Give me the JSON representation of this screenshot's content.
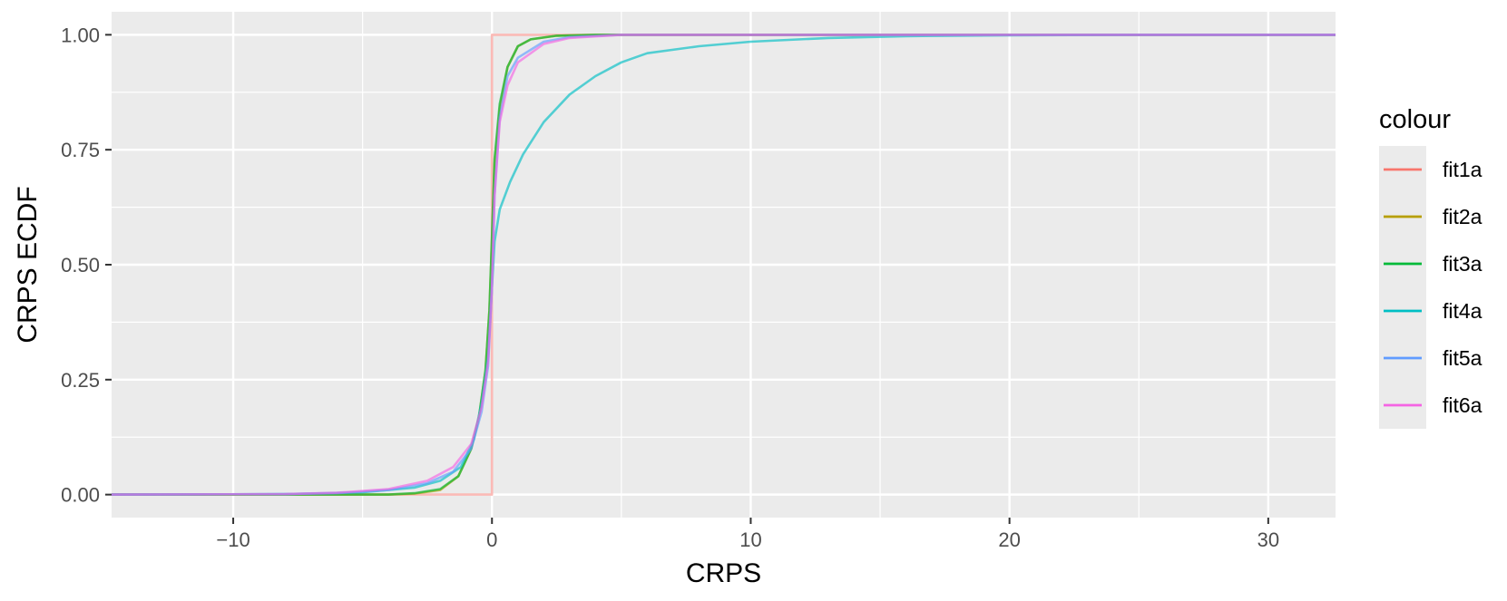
{
  "chart_data": {
    "type": "line",
    "title": "",
    "xlabel": "CRPS",
    "ylabel": "CRPS ECDF",
    "xlim": [
      -14.7,
      32.6
    ],
    "ylim": [
      -0.05,
      1.05
    ],
    "x_ticks": [
      -10,
      0,
      10,
      20,
      30
    ],
    "x_tick_labels": [
      "−10",
      "0",
      "10",
      "20",
      "30"
    ],
    "y_ticks": [
      0,
      0.25,
      0.5,
      0.75,
      1
    ],
    "y_tick_labels": [
      "0.00",
      "0.25",
      "0.50",
      "0.75",
      "1.00"
    ],
    "grid": true,
    "panel_background": "#ebebeb",
    "legend": {
      "title": "colour",
      "position": "right"
    },
    "series": [
      {
        "name": "fit1a",
        "color": "#F8766D",
        "points": [
          [
            -14.7,
            0
          ],
          [
            0,
            0
          ],
          [
            0,
            1
          ],
          [
            32.6,
            1
          ]
        ]
      },
      {
        "name": "fit2a",
        "color": "#B79F00",
        "points": [
          [
            -14.7,
            0
          ],
          [
            -4,
            0
          ],
          [
            -3,
            0.002
          ],
          [
            -2,
            0.01
          ],
          [
            -1.3,
            0.04
          ],
          [
            -0.8,
            0.1
          ],
          [
            -0.5,
            0.17
          ],
          [
            -0.25,
            0.27
          ],
          [
            -0.1,
            0.4
          ],
          [
            0,
            0.55
          ],
          [
            0.1,
            0.72
          ],
          [
            0.3,
            0.84
          ],
          [
            0.6,
            0.93
          ],
          [
            1,
            0.975
          ],
          [
            1.5,
            0.99
          ],
          [
            2.5,
            0.998
          ],
          [
            4,
            1
          ],
          [
            32.6,
            1
          ]
        ]
      },
      {
        "name": "fit3a",
        "color": "#00BA38",
        "points": [
          [
            -14.7,
            0
          ],
          [
            -4,
            0
          ],
          [
            -3,
            0.003
          ],
          [
            -2,
            0.012
          ],
          [
            -1.3,
            0.04
          ],
          [
            -0.8,
            0.1
          ],
          [
            -0.5,
            0.17
          ],
          [
            -0.25,
            0.27
          ],
          [
            -0.1,
            0.4
          ],
          [
            0,
            0.56
          ],
          [
            0.1,
            0.73
          ],
          [
            0.3,
            0.85
          ],
          [
            0.6,
            0.93
          ],
          [
            1,
            0.975
          ],
          [
            1.5,
            0.99
          ],
          [
            2.5,
            0.998
          ],
          [
            4,
            1
          ],
          [
            32.6,
            1
          ]
        ]
      },
      {
        "name": "fit4a",
        "color": "#00BFC4",
        "points": [
          [
            -14.7,
            0
          ],
          [
            -8,
            0.001
          ],
          [
            -5,
            0.005
          ],
          [
            -3,
            0.015
          ],
          [
            -2,
            0.03
          ],
          [
            -1.2,
            0.06
          ],
          [
            -0.7,
            0.12
          ],
          [
            -0.4,
            0.2
          ],
          [
            -0.15,
            0.3
          ],
          [
            0,
            0.45
          ],
          [
            0.1,
            0.55
          ],
          [
            0.3,
            0.62
          ],
          [
            0.7,
            0.68
          ],
          [
            1.2,
            0.74
          ],
          [
            2,
            0.81
          ],
          [
            3,
            0.87
          ],
          [
            4,
            0.91
          ],
          [
            5,
            0.94
          ],
          [
            6,
            0.96
          ],
          [
            8,
            0.975
          ],
          [
            10,
            0.985
          ],
          [
            13,
            0.993
          ],
          [
            16,
            0.997
          ],
          [
            20,
            0.999
          ],
          [
            25,
            1
          ],
          [
            32.6,
            1
          ]
        ]
      },
      {
        "name": "fit5a",
        "color": "#619CFF",
        "points": [
          [
            -14.7,
            0
          ],
          [
            -8,
            0.001
          ],
          [
            -6,
            0.003
          ],
          [
            -4,
            0.01
          ],
          [
            -2.5,
            0.025
          ],
          [
            -1.5,
            0.05
          ],
          [
            -0.8,
            0.1
          ],
          [
            -0.4,
            0.18
          ],
          [
            -0.15,
            0.28
          ],
          [
            0,
            0.45
          ],
          [
            0.1,
            0.65
          ],
          [
            0.3,
            0.82
          ],
          [
            0.6,
            0.91
          ],
          [
            1,
            0.95
          ],
          [
            2,
            0.985
          ],
          [
            3,
            0.995
          ],
          [
            5,
            1
          ],
          [
            32.6,
            1
          ]
        ]
      },
      {
        "name": "fit6a",
        "color": "#F564E3",
        "points": [
          [
            -14.7,
            0
          ],
          [
            -8,
            0.001
          ],
          [
            -6,
            0.004
          ],
          [
            -4,
            0.012
          ],
          [
            -2.5,
            0.03
          ],
          [
            -1.5,
            0.06
          ],
          [
            -0.8,
            0.11
          ],
          [
            -0.4,
            0.19
          ],
          [
            -0.15,
            0.29
          ],
          [
            0,
            0.45
          ],
          [
            0.1,
            0.65
          ],
          [
            0.3,
            0.81
          ],
          [
            0.6,
            0.89
          ],
          [
            1,
            0.94
          ],
          [
            2,
            0.98
          ],
          [
            3,
            0.993
          ],
          [
            5,
            1
          ],
          [
            32.6,
            1
          ]
        ]
      }
    ]
  }
}
